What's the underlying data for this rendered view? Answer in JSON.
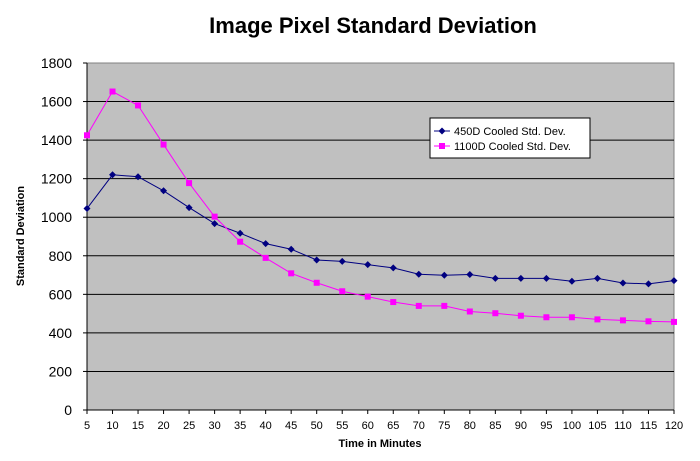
{
  "chart_data": {
    "type": "line",
    "title": "Image Pixel Standard Deviation",
    "xlabel": "Time in Minutes",
    "ylabel": "Standard Deviation",
    "ylim": [
      0,
      1800
    ],
    "yticks": [
      0,
      200,
      400,
      600,
      800,
      1000,
      1200,
      1400,
      1600,
      1800
    ],
    "grid": true,
    "legend_position": "top-right",
    "x": [
      5,
      10,
      15,
      20,
      25,
      30,
      35,
      40,
      45,
      50,
      55,
      60,
      65,
      70,
      75,
      80,
      85,
      90,
      95,
      100,
      105,
      110,
      115,
      120
    ],
    "series": [
      {
        "name": "450D Cooled Std. Dev.",
        "color": "#000080",
        "marker": "diamond",
        "values": [
          1045,
          1220,
          1210,
          1137,
          1050,
          967,
          917,
          863,
          834,
          778,
          771,
          754,
          737,
          704,
          699,
          703,
          683,
          683,
          683,
          668,
          683,
          659,
          654,
          671
        ]
      },
      {
        "name": "1100D Cooled Std. Dev.",
        "color": "#ff00ff",
        "marker": "square",
        "values": [
          1425,
          1652,
          1580,
          1377,
          1177,
          1003,
          873,
          789,
          709,
          660,
          616,
          588,
          560,
          540,
          540,
          511,
          502,
          489,
          481,
          481,
          470,
          465,
          460,
          457
        ]
      }
    ]
  }
}
